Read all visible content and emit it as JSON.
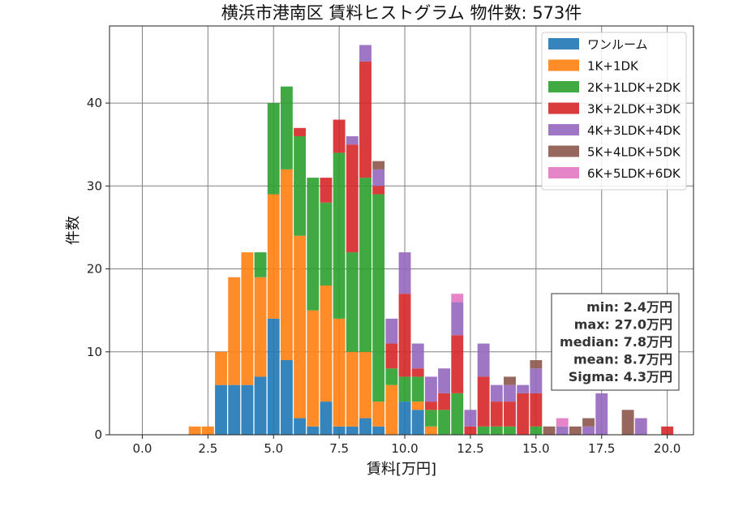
{
  "chart_data": {
    "type": "bar",
    "stacked": true,
    "title": "横浜市港南区 賃料ヒストグラム  物件数: 573件",
    "xlabel": "賃料[万円]",
    "ylabel": "件数",
    "xlim": [
      -1.25,
      21.0
    ],
    "ylim": [
      0,
      49.3
    ],
    "xticks": [
      "0.0",
      "2.5",
      "5.0",
      "7.5",
      "10.0",
      "12.5",
      "15.0",
      "17.5",
      "20.0"
    ],
    "yticks": [
      "0",
      "10",
      "20",
      "30",
      "40"
    ],
    "grid": true,
    "legend_position": "top-right",
    "bin_width": 0.5,
    "x": [
      2.0,
      2.5,
      3.0,
      3.5,
      4.0,
      4.5,
      5.0,
      5.5,
      6.0,
      6.5,
      7.0,
      7.5,
      8.0,
      8.5,
      9.0,
      9.5,
      10.0,
      10.5,
      11.0,
      11.5,
      12.0,
      12.5,
      13.0,
      13.5,
      14.0,
      14.5,
      15.0,
      15.5,
      16.0,
      16.5,
      17.0,
      17.5,
      18.0,
      18.5,
      19.0,
      19.5
    ],
    "series": [
      {
        "name": "ワンルーム",
        "color": "#1f77b4",
        "values": [
          0,
          0,
          6,
          6,
          6,
          7,
          14,
          9,
          2,
          1,
          4,
          1,
          1,
          2,
          1,
          0,
          4,
          3,
          0,
          0,
          0,
          0,
          0,
          0,
          0,
          0,
          0,
          0,
          0,
          0,
          0,
          0,
          0,
          0,
          0,
          0
        ]
      },
      {
        "name": "1K+1DK",
        "color": "#ff7f0e",
        "values": [
          1,
          1,
          4,
          13,
          16,
          12,
          15,
          23,
          22,
          14,
          14,
          13,
          9,
          8,
          3,
          6,
          0,
          1,
          1,
          0,
          0,
          0,
          0,
          0,
          0,
          0,
          0,
          0,
          0,
          0,
          0,
          0,
          0,
          0,
          0,
          0
        ]
      },
      {
        "name": "2K+1LDK+2DK",
        "color": "#2ca02c",
        "values": [
          0,
          0,
          0,
          0,
          0,
          3,
          11,
          10,
          12,
          16,
          10,
          20,
          12,
          21,
          25,
          2,
          3,
          3,
          2,
          3,
          5,
          0,
          1,
          1,
          1,
          0,
          1,
          0,
          0,
          0,
          0,
          0,
          0,
          0,
          0,
          0
        ]
      },
      {
        "name": "3K+2LDK+3DK",
        "color": "#d62728",
        "values": [
          0,
          0,
          0,
          0,
          0,
          0,
          0,
          0,
          1,
          0,
          3,
          4,
          13,
          14,
          1,
          3,
          10,
          1,
          1,
          2,
          7,
          1,
          6,
          3,
          3,
          5,
          4,
          0,
          0,
          0,
          0,
          0,
          0,
          0,
          0,
          0
        ]
      },
      {
        "name": "4K+3LDK+4DK",
        "color": "#9467bd",
        "values": [
          0,
          0,
          0,
          0,
          0,
          0,
          0,
          0,
          0,
          0,
          0,
          0,
          1,
          2,
          2,
          3,
          5,
          3,
          3,
          3,
          4,
          2,
          4,
          2,
          2,
          1,
          3,
          0,
          1,
          0,
          1,
          5,
          0,
          0,
          2,
          0
        ]
      },
      {
        "name": "5K+4LDK+5DK",
        "color": "#8c564b",
        "values": [
          0,
          0,
          0,
          0,
          0,
          0,
          0,
          0,
          0,
          0,
          0,
          0,
          0,
          0,
          1,
          0,
          0,
          0,
          0,
          0,
          0,
          0,
          0,
          0,
          1,
          0,
          1,
          1,
          0,
          1,
          1,
          0,
          0,
          3,
          0,
          0
        ]
      },
      {
        "name": "6K+5LDK+6DK",
        "color": "#e377c2",
        "values": [
          0,
          0,
          0,
          0,
          0,
          0,
          0,
          0,
          0,
          0,
          0,
          0,
          0,
          0,
          0,
          0,
          0,
          0,
          0,
          0,
          1,
          0,
          0,
          0,
          0,
          0,
          0,
          0,
          1,
          0,
          0,
          0,
          0,
          0,
          0,
          0
        ]
      }
    ],
    "extra_bins": [
      {
        "x": 20.0,
        "series": "3K+2LDK+3DK",
        "value": 1
      }
    ],
    "stats_box": [
      "min: 2.4万円",
      "max: 27.0万円",
      "median: 7.8万円",
      "mean: 8.7万円",
      "Sigma: 4.3万円"
    ]
  }
}
